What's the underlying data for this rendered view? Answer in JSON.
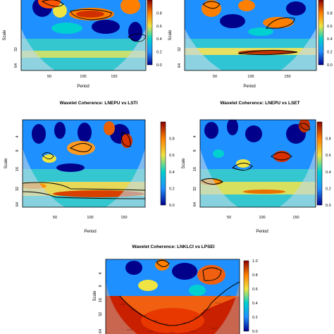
{
  "chart_data": [
    {
      "type": "heatmap",
      "title": "",
      "xlabel": "Period",
      "ylabel": "Scale",
      "x_ticks": [
        "50",
        "100",
        "150"
      ],
      "y_ticks": [
        "32",
        "64"
      ],
      "colorbar_ticks": [
        "0.8",
        "0.6",
        "0.4",
        "0.2",
        "0.0"
      ],
      "colorbar_range": [
        0,
        1
      ],
      "xlim": [
        0,
        200
      ]
    },
    {
      "type": "heatmap",
      "title": "",
      "xlabel": "Period",
      "ylabel": "Scale",
      "x_ticks": [
        "50",
        "100",
        "150"
      ],
      "y_ticks": [
        "32",
        "64"
      ],
      "colorbar_ticks": [
        "0.8",
        "0.6",
        "0.4",
        "0.2",
        "0.0"
      ],
      "colorbar_range": [
        0,
        1
      ],
      "xlim": [
        0,
        200
      ]
    },
    {
      "type": "heatmap",
      "title": "Wavelet Coherence: LNEPU vs LSTI",
      "xlabel": "Period",
      "ylabel": "Scale",
      "x_ticks": [
        "50",
        "100",
        "150"
      ],
      "y_ticks": [
        "4",
        "8",
        "16",
        "32",
        "64"
      ],
      "colorbar_ticks": [
        "0.8",
        "0.6",
        "0.4",
        "0.2",
        "0.0"
      ],
      "colorbar_range": [
        0,
        1
      ],
      "xlim": [
        0,
        200
      ]
    },
    {
      "type": "heatmap",
      "title": "Wavelet Coherence: LNEPU vs LSET",
      "xlabel": "Period",
      "ylabel": "Scale",
      "x_ticks": [
        "50",
        "100",
        "150"
      ],
      "y_ticks": [
        "4",
        "8",
        "16",
        "32",
        "64"
      ],
      "colorbar_ticks": [
        "0.8",
        "0.6",
        "0.4",
        "0.2",
        "0.0"
      ],
      "colorbar_range": [
        0,
        1
      ],
      "xlim": [
        0,
        200
      ]
    },
    {
      "type": "heatmap",
      "title": "Wavelet Coherence: LNKLCI vs LPSEI",
      "xlabel": "",
      "ylabel": "Scale",
      "x_ticks": [],
      "y_ticks": [
        "4",
        "8",
        "16",
        "32",
        "64"
      ],
      "colorbar_ticks": [
        "1.0",
        "0.8",
        "0.6",
        "0.4",
        "0.2",
        "0.0"
      ],
      "colorbar_range": [
        0,
        1
      ],
      "xlim": [
        0,
        200
      ]
    }
  ],
  "colors": {
    "low": "#00008b",
    "mid_low": "#1e90ff",
    "mid": "#00c8c8",
    "mid_high": "#f0e442",
    "high": "#ff7f00",
    "max": "#8b0000",
    "contour": "#000000",
    "cone": "#ffffff"
  }
}
